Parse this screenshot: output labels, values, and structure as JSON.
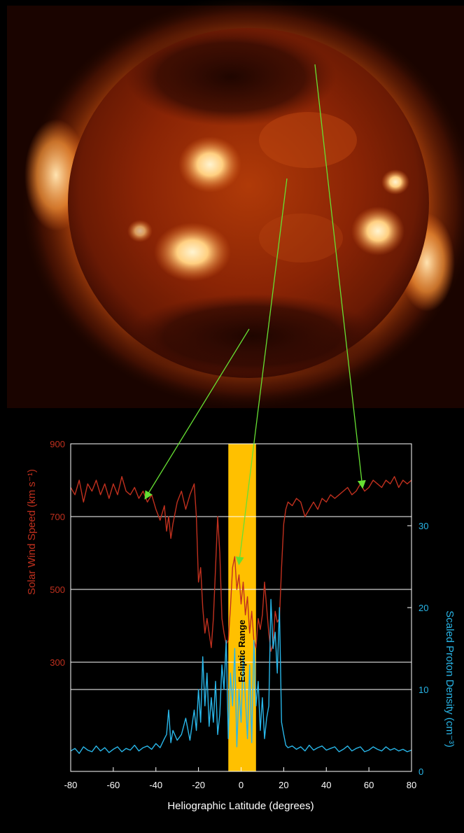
{
  "image": {
    "description_icon": "sun-xray-image"
  },
  "chart_data": {
    "type": "line",
    "xlabel": "Heliographic Latitude (degrees)",
    "ylabel_left": "Solar Wind Speed (km s⁻¹)",
    "ylabel_right": "Scaled Proton Density (cm⁻³)",
    "xlim": [
      -80,
      80
    ],
    "x_ticks": [
      "-80",
      "-60",
      "-40",
      "-20",
      "0",
      "20",
      "40",
      "60",
      "80"
    ],
    "y_left_ticks": [
      "900",
      "700",
      "500",
      "300"
    ],
    "y_left_tick_values": [
      900,
      700,
      500,
      300
    ],
    "y_right_ticks": [
      "30",
      "20",
      "10",
      "0"
    ],
    "y_right_tick_values": [
      30,
      20,
      10,
      0
    ],
    "ylim_left": [
      0,
      900
    ],
    "ylim_right": [
      0,
      40
    ],
    "grid": "horizontal",
    "band": {
      "label": "Ecliptic Range",
      "x_start": -6,
      "x_end": 7,
      "color": "#ffc000"
    },
    "colors": {
      "speed": "#c0301e",
      "density": "#29b6e8",
      "grid": "#ffffff",
      "arrow": "#66e033",
      "left_axis_text": "#c0301e",
      "right_axis_text": "#29b6e8"
    },
    "series": [
      {
        "name": "Solar Wind Speed",
        "axis": "left",
        "x": [
          -80,
          -78,
          -76,
          -74,
          -72,
          -70,
          -68,
          -66,
          -64,
          -62,
          -60,
          -58,
          -56,
          -54,
          -52,
          -50,
          -48,
          -46,
          -44,
          -42,
          -40,
          -38,
          -36,
          -35,
          -34,
          -33,
          -32,
          -30,
          -28,
          -26,
          -24,
          -22,
          -21,
          -20,
          -19,
          -18,
          -17,
          -16,
          -15,
          -14,
          -13,
          -12,
          -11,
          -10,
          -9,
          -8,
          -7,
          -6,
          -5,
          -4,
          -3,
          -2,
          -1,
          0,
          1,
          2,
          3,
          4,
          5,
          6,
          7,
          8,
          9,
          10,
          11,
          12,
          13,
          14,
          15,
          16,
          17,
          18,
          19,
          20,
          21,
          22,
          24,
          26,
          28,
          30,
          32,
          34,
          36,
          38,
          40,
          42,
          44,
          46,
          48,
          50,
          52,
          54,
          56,
          58,
          60,
          62,
          64,
          66,
          68,
          70,
          72,
          74,
          76,
          78,
          80
        ],
        "values": [
          780,
          760,
          800,
          740,
          790,
          770,
          800,
          760,
          790,
          750,
          790,
          760,
          810,
          770,
          760,
          780,
          750,
          770,
          740,
          760,
          720,
          690,
          730,
          660,
          700,
          640,
          680,
          740,
          770,
          720,
          760,
          790,
          700,
          520,
          560,
          450,
          380,
          420,
          380,
          340,
          420,
          560,
          700,
          600,
          420,
          380,
          350,
          360,
          450,
          560,
          590,
          500,
          540,
          460,
          520,
          430,
          480,
          380,
          440,
          360,
          340,
          420,
          390,
          430,
          520,
          450,
          380,
          330,
          350,
          440,
          410,
          420,
          560,
          680,
          720,
          740,
          730,
          750,
          740,
          700,
          720,
          740,
          720,
          750,
          740,
          760,
          750,
          760,
          770,
          780,
          760,
          770,
          790,
          770,
          780,
          800,
          790,
          780,
          800,
          790,
          810,
          780,
          800,
          790,
          800
        ]
      },
      {
        "name": "Scaled Proton Density",
        "axis": "right",
        "x": [
          -80,
          -78,
          -76,
          -74,
          -72,
          -70,
          -68,
          -66,
          -64,
          -62,
          -60,
          -58,
          -56,
          -54,
          -52,
          -50,
          -48,
          -46,
          -44,
          -42,
          -40,
          -38,
          -36,
          -35,
          -34,
          -33,
          -32,
          -30,
          -28,
          -26,
          -24,
          -22,
          -21,
          -20,
          -19,
          -18,
          -17,
          -16,
          -15,
          -14,
          -13,
          -12,
          -11,
          -10,
          -9,
          -8,
          -7,
          -6,
          -5,
          -4,
          -3,
          -2,
          -1,
          0,
          1,
          2,
          3,
          4,
          5,
          6,
          7,
          8,
          9,
          10,
          11,
          12,
          13,
          14,
          15,
          16,
          17,
          18,
          19,
          20,
          21,
          22,
          24,
          26,
          28,
          30,
          32,
          34,
          36,
          38,
          40,
          42,
          44,
          46,
          48,
          50,
          52,
          54,
          56,
          58,
          60,
          62,
          64,
          66,
          68,
          70,
          72,
          74,
          76,
          78,
          80
        ],
        "values": [
          2.5,
          2.8,
          2.2,
          3.0,
          2.6,
          2.4,
          3.1,
          2.5,
          2.9,
          2.3,
          2.7,
          3.0,
          2.4,
          2.8,
          2.6,
          3.2,
          2.5,
          2.9,
          3.1,
          2.7,
          3.4,
          2.9,
          4.0,
          4.5,
          7.5,
          3.5,
          5.0,
          3.8,
          4.5,
          6.5,
          3.8,
          7.5,
          5.0,
          10.0,
          6.0,
          14.0,
          8.0,
          12.0,
          5.5,
          9.0,
          6.0,
          11.0,
          4.5,
          7.0,
          13.0,
          10.0,
          16.0,
          4.0,
          12.0,
          8.0,
          15.0,
          3.0,
          10.0,
          6.0,
          14.0,
          9.0,
          4.0,
          13.0,
          3.5,
          16.0,
          8.0,
          11.0,
          5.0,
          9.0,
          4.0,
          6.5,
          8.0,
          21.0,
          15.0,
          17.0,
          12.0,
          20.0,
          6.0,
          4.5,
          3.2,
          2.9,
          3.1,
          2.7,
          3.0,
          2.5,
          3.2,
          2.6,
          2.9,
          3.1,
          2.6,
          2.8,
          3.0,
          2.4,
          2.7,
          3.1,
          2.5,
          2.8,
          3.0,
          2.4,
          2.6,
          3.0,
          2.7,
          2.5,
          3.0,
          2.6,
          2.8,
          2.5,
          2.7,
          2.4,
          2.6
        ]
      }
    ],
    "arrows": [
      {
        "label": "south-pole-arrow",
        "target_x": -45,
        "target_speed": 750
      },
      {
        "label": "equator-arrow",
        "target_x": -1,
        "target_speed": 570
      },
      {
        "label": "north-pole-arrow",
        "target_x": 57,
        "target_speed": 780
      }
    ]
  }
}
